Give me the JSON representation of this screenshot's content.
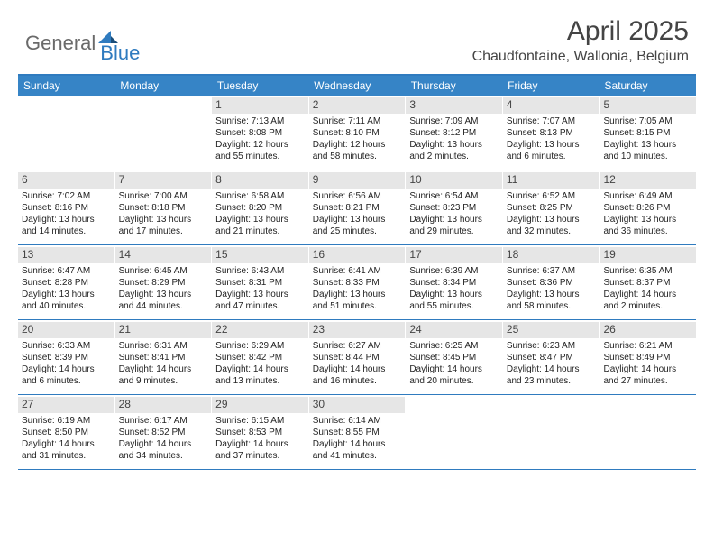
{
  "brand": {
    "part1": "General",
    "part2": "Blue"
  },
  "title": "April 2025",
  "location": "Chaudfontaine, Wallonia, Belgium",
  "header_bg": "#3684c6",
  "border_color": "#2f7bbf",
  "daynum_bg": "#e6e6e6",
  "weekdays": [
    "Sunday",
    "Monday",
    "Tuesday",
    "Wednesday",
    "Thursday",
    "Friday",
    "Saturday"
  ],
  "weeks": [
    [
      {
        "n": "",
        "sr": "",
        "ss": "",
        "dl": ""
      },
      {
        "n": "",
        "sr": "",
        "ss": "",
        "dl": ""
      },
      {
        "n": "1",
        "sr": "Sunrise: 7:13 AM",
        "ss": "Sunset: 8:08 PM",
        "dl": "Daylight: 12 hours and 55 minutes."
      },
      {
        "n": "2",
        "sr": "Sunrise: 7:11 AM",
        "ss": "Sunset: 8:10 PM",
        "dl": "Daylight: 12 hours and 58 minutes."
      },
      {
        "n": "3",
        "sr": "Sunrise: 7:09 AM",
        "ss": "Sunset: 8:12 PM",
        "dl": "Daylight: 13 hours and 2 minutes."
      },
      {
        "n": "4",
        "sr": "Sunrise: 7:07 AM",
        "ss": "Sunset: 8:13 PM",
        "dl": "Daylight: 13 hours and 6 minutes."
      },
      {
        "n": "5",
        "sr": "Sunrise: 7:05 AM",
        "ss": "Sunset: 8:15 PM",
        "dl": "Daylight: 13 hours and 10 minutes."
      }
    ],
    [
      {
        "n": "6",
        "sr": "Sunrise: 7:02 AM",
        "ss": "Sunset: 8:16 PM",
        "dl": "Daylight: 13 hours and 14 minutes."
      },
      {
        "n": "7",
        "sr": "Sunrise: 7:00 AM",
        "ss": "Sunset: 8:18 PM",
        "dl": "Daylight: 13 hours and 17 minutes."
      },
      {
        "n": "8",
        "sr": "Sunrise: 6:58 AM",
        "ss": "Sunset: 8:20 PM",
        "dl": "Daylight: 13 hours and 21 minutes."
      },
      {
        "n": "9",
        "sr": "Sunrise: 6:56 AM",
        "ss": "Sunset: 8:21 PM",
        "dl": "Daylight: 13 hours and 25 minutes."
      },
      {
        "n": "10",
        "sr": "Sunrise: 6:54 AM",
        "ss": "Sunset: 8:23 PM",
        "dl": "Daylight: 13 hours and 29 minutes."
      },
      {
        "n": "11",
        "sr": "Sunrise: 6:52 AM",
        "ss": "Sunset: 8:25 PM",
        "dl": "Daylight: 13 hours and 32 minutes."
      },
      {
        "n": "12",
        "sr": "Sunrise: 6:49 AM",
        "ss": "Sunset: 8:26 PM",
        "dl": "Daylight: 13 hours and 36 minutes."
      }
    ],
    [
      {
        "n": "13",
        "sr": "Sunrise: 6:47 AM",
        "ss": "Sunset: 8:28 PM",
        "dl": "Daylight: 13 hours and 40 minutes."
      },
      {
        "n": "14",
        "sr": "Sunrise: 6:45 AM",
        "ss": "Sunset: 8:29 PM",
        "dl": "Daylight: 13 hours and 44 minutes."
      },
      {
        "n": "15",
        "sr": "Sunrise: 6:43 AM",
        "ss": "Sunset: 8:31 PM",
        "dl": "Daylight: 13 hours and 47 minutes."
      },
      {
        "n": "16",
        "sr": "Sunrise: 6:41 AM",
        "ss": "Sunset: 8:33 PM",
        "dl": "Daylight: 13 hours and 51 minutes."
      },
      {
        "n": "17",
        "sr": "Sunrise: 6:39 AM",
        "ss": "Sunset: 8:34 PM",
        "dl": "Daylight: 13 hours and 55 minutes."
      },
      {
        "n": "18",
        "sr": "Sunrise: 6:37 AM",
        "ss": "Sunset: 8:36 PM",
        "dl": "Daylight: 13 hours and 58 minutes."
      },
      {
        "n": "19",
        "sr": "Sunrise: 6:35 AM",
        "ss": "Sunset: 8:37 PM",
        "dl": "Daylight: 14 hours and 2 minutes."
      }
    ],
    [
      {
        "n": "20",
        "sr": "Sunrise: 6:33 AM",
        "ss": "Sunset: 8:39 PM",
        "dl": "Daylight: 14 hours and 6 minutes."
      },
      {
        "n": "21",
        "sr": "Sunrise: 6:31 AM",
        "ss": "Sunset: 8:41 PM",
        "dl": "Daylight: 14 hours and 9 minutes."
      },
      {
        "n": "22",
        "sr": "Sunrise: 6:29 AM",
        "ss": "Sunset: 8:42 PM",
        "dl": "Daylight: 14 hours and 13 minutes."
      },
      {
        "n": "23",
        "sr": "Sunrise: 6:27 AM",
        "ss": "Sunset: 8:44 PM",
        "dl": "Daylight: 14 hours and 16 minutes."
      },
      {
        "n": "24",
        "sr": "Sunrise: 6:25 AM",
        "ss": "Sunset: 8:45 PM",
        "dl": "Daylight: 14 hours and 20 minutes."
      },
      {
        "n": "25",
        "sr": "Sunrise: 6:23 AM",
        "ss": "Sunset: 8:47 PM",
        "dl": "Daylight: 14 hours and 23 minutes."
      },
      {
        "n": "26",
        "sr": "Sunrise: 6:21 AM",
        "ss": "Sunset: 8:49 PM",
        "dl": "Daylight: 14 hours and 27 minutes."
      }
    ],
    [
      {
        "n": "27",
        "sr": "Sunrise: 6:19 AM",
        "ss": "Sunset: 8:50 PM",
        "dl": "Daylight: 14 hours and 31 minutes."
      },
      {
        "n": "28",
        "sr": "Sunrise: 6:17 AM",
        "ss": "Sunset: 8:52 PM",
        "dl": "Daylight: 14 hours and 34 minutes."
      },
      {
        "n": "29",
        "sr": "Sunrise: 6:15 AM",
        "ss": "Sunset: 8:53 PM",
        "dl": "Daylight: 14 hours and 37 minutes."
      },
      {
        "n": "30",
        "sr": "Sunrise: 6:14 AM",
        "ss": "Sunset: 8:55 PM",
        "dl": "Daylight: 14 hours and 41 minutes."
      },
      {
        "n": "",
        "sr": "",
        "ss": "",
        "dl": ""
      },
      {
        "n": "",
        "sr": "",
        "ss": "",
        "dl": ""
      },
      {
        "n": "",
        "sr": "",
        "ss": "",
        "dl": ""
      }
    ]
  ]
}
